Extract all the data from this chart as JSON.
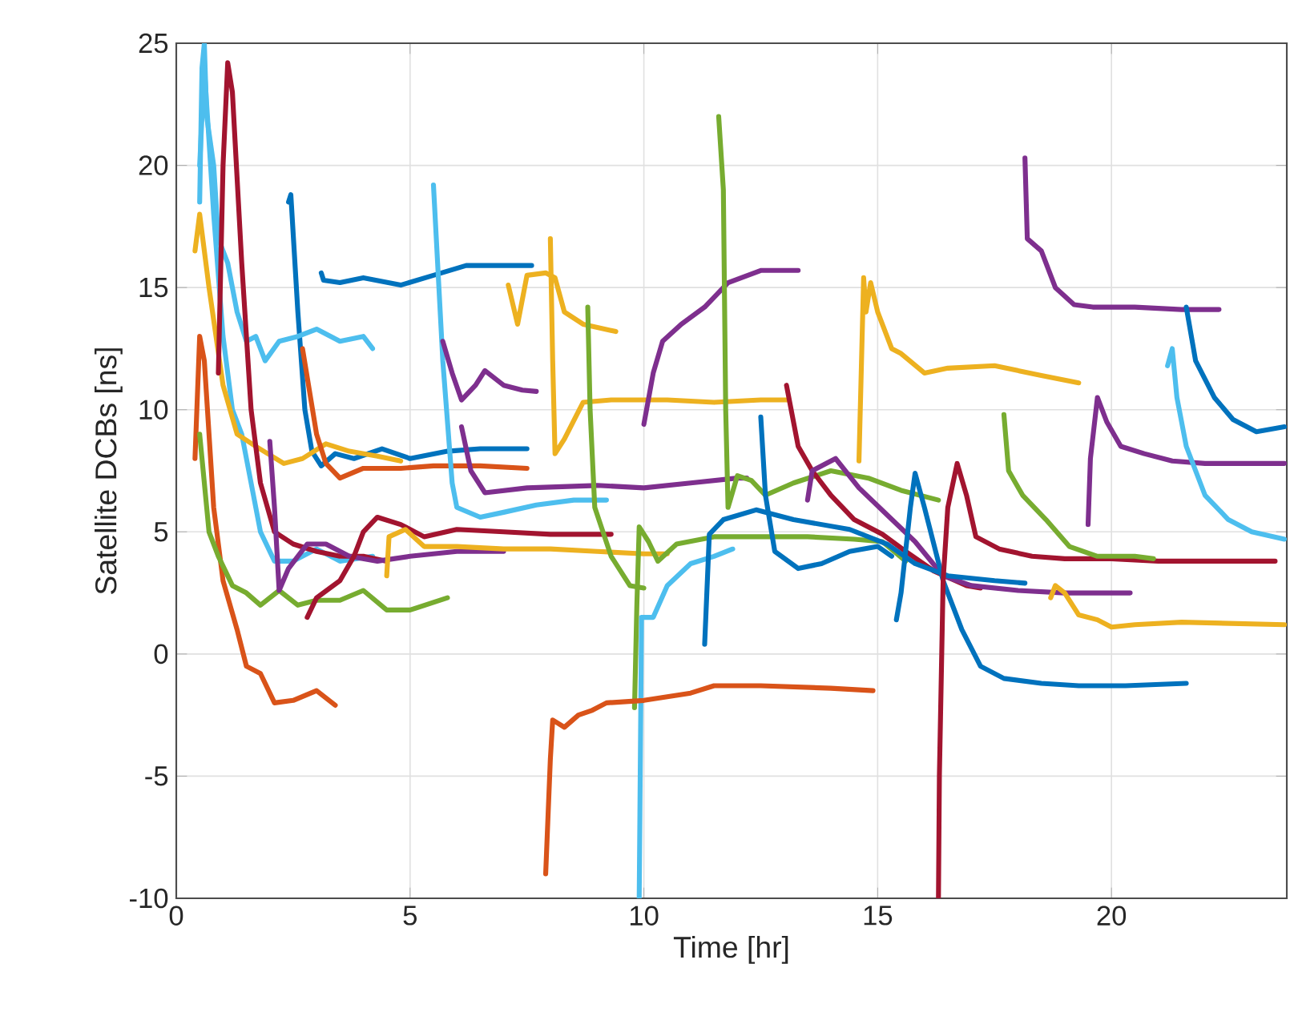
{
  "chart_data": {
    "type": "line",
    "xlabel": "Time [hr]",
    "ylabel": "Satellite DCBs [ns]",
    "xlim": [
      0,
      23.75
    ],
    "ylim": [
      -10,
      25
    ],
    "xticks": [
      0,
      5,
      10,
      15,
      20
    ],
    "yticks": [
      -10,
      -5,
      0,
      5,
      10,
      15,
      20,
      25
    ],
    "grid": true,
    "line_style": "solid",
    "series": [
      {
        "color": "#0072bd",
        "x": [
          2.4,
          2.45,
          2.6,
          2.75,
          2.9,
          3.1,
          3.4,
          3.8,
          4.4,
          5.0,
          5.8,
          6.5,
          7.5
        ],
        "values": [
          18.5,
          18.8,
          14,
          10,
          8.3,
          7.7,
          8.2,
          8.0,
          8.4,
          8.0,
          8.3,
          8.4,
          8.4
        ]
      },
      {
        "color": "#0072bd",
        "x": [
          3.1,
          3.15,
          3.5,
          4.0,
          4.8,
          5.5,
          6.2,
          7.0,
          7.6
        ],
        "values": [
          15.6,
          15.3,
          15.2,
          15.4,
          15.1,
          15.5,
          15.9,
          15.9,
          15.9
        ]
      },
      {
        "color": "#4dbeee",
        "x": [
          0.5,
          0.55,
          0.6,
          0.65,
          0.8,
          0.9,
          1.1,
          1.3,
          1.5,
          1.7,
          1.9,
          2.2,
          2.6,
          3.0,
          3.5,
          4.0,
          4.2
        ],
        "values": [
          18.5,
          24,
          25,
          22,
          20,
          17,
          16,
          14,
          12.8,
          13,
          12,
          12.8,
          13,
          13.3,
          12.8,
          13,
          12.5
        ]
      },
      {
        "color": "#4dbeee",
        "x": [
          0.5,
          0.6,
          0.8,
          1.0,
          1.2,
          1.4,
          1.6,
          1.8,
          2.1,
          2.5,
          3.0,
          3.5,
          4.2
        ],
        "values": [
          20,
          24,
          18,
          13,
          10,
          9,
          7,
          5,
          3.8,
          3.8,
          4.3,
          3.8,
          4.0
        ]
      },
      {
        "color": "#edb120",
        "x": [
          0.4,
          0.5,
          0.7,
          1.0,
          1.3,
          1.7,
          2.3,
          2.7,
          3.2,
          3.7,
          4.3,
          4.8
        ],
        "values": [
          16.5,
          18,
          15,
          11,
          9,
          8.5,
          7.8,
          8,
          8.6,
          8.3,
          8.1,
          7.9
        ]
      },
      {
        "color": "#d95319",
        "x": [
          0.4,
          0.5,
          0.6,
          0.8,
          1.0,
          1.3,
          1.5,
          1.8,
          2.1,
          2.5,
          3.0,
          3.4
        ],
        "values": [
          8,
          13,
          12,
          6,
          3,
          1,
          -0.5,
          -0.8,
          -2,
          -1.9,
          -1.5,
          -2.1
        ]
      },
      {
        "color": "#a2142f",
        "x": [
          0.9,
          1.0,
          1.1,
          1.2,
          1.4,
          1.6,
          1.8,
          2.1,
          2.5,
          3.0,
          3.5,
          4.0,
          4.5
        ],
        "values": [
          11.5,
          20,
          24.2,
          23,
          16,
          10,
          7,
          5,
          4.5,
          4.2,
          4.0,
          4.0,
          3.8
        ]
      },
      {
        "color": "#d95319",
        "x": [
          2.7,
          3.0,
          3.2,
          3.5,
          4.0,
          4.8,
          5.5,
          6.5,
          7.5
        ],
        "values": [
          12.5,
          9.0,
          7.8,
          7.2,
          7.6,
          7.6,
          7.7,
          7.7,
          7.6
        ]
      },
      {
        "color": "#77ac30",
        "x": [
          0.5,
          0.7,
          0.9,
          1.2,
          1.5,
          1.8,
          2.2,
          2.6,
          3.0,
          3.5,
          4.0,
          4.5,
          5.0,
          5.8
        ],
        "values": [
          9,
          5,
          4,
          2.8,
          2.5,
          2.0,
          2.6,
          2.0,
          2.2,
          2.2,
          2.6,
          1.8,
          1.8,
          2.3
        ]
      },
      {
        "color": "#7e2f8e",
        "x": [
          2.0,
          2.1,
          2.2,
          2.4,
          2.8,
          3.2,
          3.7,
          4.3,
          5.0,
          6.0,
          7.0
        ],
        "values": [
          8.7,
          6,
          2.6,
          3.5,
          4.5,
          4.5,
          4.0,
          3.8,
          4.0,
          4.2,
          4.2
        ]
      },
      {
        "color": "#a2142f",
        "x": [
          2.8,
          3.0,
          3.5,
          3.8,
          4.0,
          4.3,
          4.8,
          5.3,
          6.0,
          7.0,
          8.0,
          9.3
        ],
        "values": [
          1.5,
          2.3,
          3.0,
          4.0,
          5.0,
          5.6,
          5.3,
          4.8,
          5.1,
          5.0,
          4.9,
          4.9
        ]
      },
      {
        "color": "#edb120",
        "x": [
          4.5,
          4.55,
          4.9,
          5.3,
          6.0,
          7.0,
          8.0,
          9.0,
          10.0,
          10.5
        ],
        "values": [
          3.2,
          4.8,
          5.1,
          4.4,
          4.4,
          4.3,
          4.3,
          4.2,
          4.1,
          4.1
        ]
      },
      {
        "color": "#4dbeee",
        "x": [
          5.5,
          5.7,
          5.9,
          6.0,
          6.5,
          7.0,
          7.7,
          8.5,
          9.2
        ],
        "values": [
          19.2,
          12,
          7,
          6,
          5.6,
          5.8,
          6.1,
          6.3,
          6.3
        ]
      },
      {
        "color": "#7e2f8e",
        "x": [
          5.7,
          5.9,
          6.1,
          6.4,
          6.6,
          7.0,
          7.4,
          7.7
        ],
        "values": [
          12.8,
          11.5,
          10.4,
          11.0,
          11.6,
          11.0,
          10.8,
          10.75
        ]
      },
      {
        "color": "#7e2f8e",
        "x": [
          6.1,
          6.3,
          6.6,
          7.5,
          9.0,
          10.0,
          11.0,
          12.0,
          12.2
        ],
        "values": [
          9.3,
          7.5,
          6.6,
          6.8,
          6.9,
          6.8,
          7.0,
          7.2,
          7.2
        ]
      },
      {
        "color": "#edb120",
        "x": [
          7.1,
          7.3,
          7.5,
          7.9,
          8.1,
          8.3,
          8.7,
          9.4
        ],
        "values": [
          15.1,
          13.5,
          15.5,
          15.6,
          15.4,
          14,
          13.5,
          13.2
        ]
      },
      {
        "color": "#edb120",
        "x": [
          8.0,
          8.05,
          8.1,
          8.3,
          8.7,
          9.3,
          10.5,
          11.5,
          12.5,
          13.1
        ],
        "values": [
          17,
          12,
          8.2,
          8.8,
          10.3,
          10.4,
          10.4,
          10.3,
          10.4,
          10.4
        ]
      },
      {
        "color": "#77ac30",
        "x": [
          8.8,
          8.85,
          8.95,
          9.3,
          9.7,
          10.0
        ],
        "values": [
          14.2,
          10,
          6,
          4.0,
          2.8,
          2.7
        ]
      },
      {
        "color": "#77ac30",
        "x": [
          9.8,
          9.85,
          9.9,
          10.1,
          10.3,
          10.7,
          11.5,
          12.5,
          13.5,
          14.5,
          15.1,
          15.6
        ],
        "values": [
          -2.2,
          2,
          5.2,
          4.6,
          3.8,
          4.5,
          4.8,
          4.8,
          4.8,
          4.7,
          4.6,
          3.8
        ]
      },
      {
        "color": "#4dbeee",
        "x": [
          9.9,
          9.95,
          10.2,
          10.5,
          11.0,
          11.5,
          11.9
        ],
        "values": [
          -10,
          1.5,
          1.5,
          2.8,
          3.7,
          4.0,
          4.3
        ]
      },
      {
        "color": "#d95319",
        "x": [
          7.9,
          8.0,
          8.05,
          8.3,
          8.6,
          8.9,
          9.2,
          10.0,
          11.0,
          11.5,
          12.5,
          14.0,
          14.9
        ],
        "values": [
          -9,
          -4.3,
          -2.7,
          -3,
          -2.5,
          -2.3,
          -2.0,
          -1.9,
          -1.6,
          -1.3,
          -1.3,
          -1.4,
          -1.5
        ]
      },
      {
        "color": "#7e2f8e",
        "x": [
          10.0,
          10.2,
          10.4,
          10.8,
          11.3,
          11.8,
          12.5,
          13.3
        ],
        "values": [
          9.4,
          11.5,
          12.8,
          13.5,
          14.2,
          15.2,
          15.7,
          15.7
        ]
      },
      {
        "color": "#77ac30",
        "x": [
          11.6,
          11.7,
          11.75,
          11.8,
          12.0,
          12.3,
          12.6,
          13.2,
          14.0,
          14.8,
          15.5,
          16.3
        ],
        "values": [
          22,
          19,
          10,
          6,
          7.3,
          7.1,
          6.5,
          7.0,
          7.5,
          7.2,
          6.7,
          6.3
        ]
      },
      {
        "color": "#a2142f",
        "x": [
          13.05,
          13.3,
          13.6,
          14.0,
          14.5,
          15.1,
          15.6,
          16.2,
          16.9,
          17.2
        ],
        "values": [
          11,
          8.5,
          7.5,
          6.5,
          5.5,
          4.9,
          4.2,
          3.4,
          2.8,
          2.7
        ]
      },
      {
        "color": "#7e2f8e",
        "x": [
          13.5,
          13.6,
          14.1,
          14.6,
          15.2,
          15.8,
          16.4,
          17.0,
          18.0,
          19.0,
          20.4
        ],
        "values": [
          6.3,
          7.5,
          8.0,
          6.8,
          5.7,
          4.6,
          3.2,
          2.8,
          2.6,
          2.5,
          2.5
        ]
      },
      {
        "color": "#0072bd",
        "x": [
          11.3,
          11.4,
          11.7,
          12.4,
          13.2,
          14.4,
          15.2,
          15.8,
          16.5,
          17.5,
          18.15
        ],
        "values": [
          0.4,
          4.9,
          5.5,
          5.9,
          5.5,
          5.1,
          4.5,
          3.7,
          3.2,
          3.0,
          2.9
        ]
      },
      {
        "color": "#0072bd",
        "x": [
          12.5,
          12.6,
          12.8,
          13.3,
          13.8,
          14.4,
          15.0,
          15.3
        ],
        "values": [
          9.7,
          6.5,
          4.2,
          3.5,
          3.7,
          4.2,
          4.4,
          4.0
        ]
      },
      {
        "color": "#0072bd",
        "x": [
          15.4,
          15.5,
          15.7,
          15.8,
          16.0,
          16.4,
          16.8,
          17.2,
          17.7,
          18.5,
          19.3,
          20.3,
          21.6
        ],
        "values": [
          1.4,
          2.5,
          6,
          7.4,
          6,
          3,
          1.0,
          -0.5,
          -1.0,
          -1.2,
          -1.3,
          -1.3,
          -1.2
        ]
      },
      {
        "color": "#a2142f",
        "x": [
          16.3,
          16.32,
          16.4,
          16.5,
          16.7,
          16.9,
          17.1,
          17.6,
          18.3,
          19.0,
          20.0,
          21.0,
          22.0,
          23.5
        ],
        "values": [
          -10,
          -5,
          3,
          6,
          7.8,
          6.5,
          4.8,
          4.3,
          4.0,
          3.9,
          3.9,
          3.8,
          3.8,
          3.8
        ]
      },
      {
        "color": "#edb120",
        "x": [
          14.6,
          14.7,
          14.75,
          14.85,
          15.0,
          15.3,
          15.5,
          16.0,
          16.5,
          17.5,
          18.5,
          19.3
        ],
        "values": [
          7.9,
          15.4,
          14,
          15.2,
          14,
          12.5,
          12.3,
          11.5,
          11.7,
          11.8,
          11.4,
          11.1
        ]
      },
      {
        "color": "#edb120",
        "x": [
          18.7,
          18.8,
          19.0,
          19.3,
          19.7,
          20.0,
          20.5,
          21.5,
          23.7
        ],
        "values": [
          2.3,
          2.8,
          2.5,
          1.6,
          1.4,
          1.1,
          1.2,
          1.3,
          1.2
        ]
      },
      {
        "color": "#77ac30",
        "x": [
          17.7,
          17.8,
          18.1,
          18.6,
          19.1,
          19.7,
          20.5,
          20.9
        ],
        "values": [
          9.8,
          7.5,
          6.5,
          5.5,
          4.4,
          4.0,
          4.0,
          3.9
        ]
      },
      {
        "color": "#7e2f8e",
        "x": [
          18.15,
          18.2,
          18.5,
          18.8,
          19.2,
          19.6,
          20.5,
          21.5,
          22.3
        ],
        "values": [
          20.3,
          17,
          16.5,
          15,
          14.3,
          14.2,
          14.2,
          14.1,
          14.1
        ]
      },
      {
        "color": "#7e2f8e",
        "x": [
          19.5,
          19.55,
          19.7,
          19.9,
          20.2,
          20.7,
          21.3,
          22.0,
          23.7
        ],
        "values": [
          5.3,
          8,
          10.5,
          9.5,
          8.5,
          8.2,
          7.9,
          7.8,
          7.8
        ]
      },
      {
        "color": "#0072bd",
        "x": [
          21.6,
          21.8,
          22.2,
          22.6,
          23.1,
          23.7
        ],
        "values": [
          14.2,
          12,
          10.5,
          9.6,
          9.1,
          9.3
        ]
      },
      {
        "color": "#4dbeee",
        "x": [
          21.2,
          21.3,
          21.4,
          21.6,
          22.0,
          22.5,
          23.0,
          23.7
        ],
        "values": [
          11.8,
          12.5,
          10.5,
          8.5,
          6.5,
          5.5,
          5.0,
          4.7
        ]
      }
    ]
  }
}
